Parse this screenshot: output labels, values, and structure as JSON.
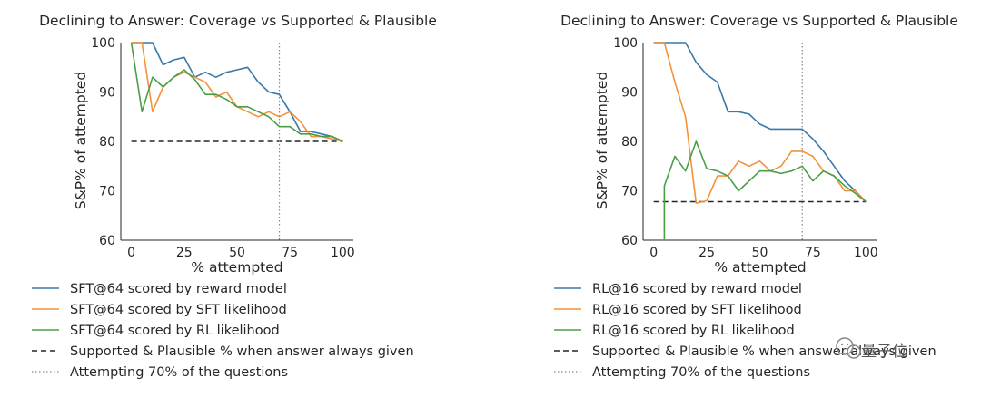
{
  "colors": {
    "reward": "#3a78a8",
    "sft": "#f4923a",
    "rl": "#4a9e47",
    "baseline": "#262626",
    "vline": "#888888"
  },
  "chart_data": [
    {
      "type": "line",
      "title": "Declining to Answer: Coverage vs Supported & Plausible",
      "xlabel": "% attempted",
      "ylabel": "S&P% of attempted",
      "xlim": [
        -5,
        105
      ],
      "ylim": [
        60,
        100
      ],
      "xticks": [
        "0",
        "25",
        "50",
        "75",
        "100"
      ],
      "yticks": [
        "60",
        "70",
        "80",
        "90",
        "100"
      ],
      "grid": false,
      "legend_position": "below",
      "baseline": 80,
      "vline": 70,
      "series": [
        {
          "name": "SFT@64 scored by reward model",
          "key": "reward",
          "x": [
            0,
            5,
            10,
            15,
            20,
            25,
            30,
            35,
            40,
            45,
            50,
            55,
            60,
            65,
            70,
            75,
            80,
            85,
            90,
            95,
            100
          ],
          "y": [
            100,
            100,
            100,
            95.5,
            96.5,
            97,
            93,
            94,
            93,
            94,
            94.5,
            95,
            92,
            90,
            89.5,
            86,
            82,
            82,
            81.5,
            81,
            80
          ]
        },
        {
          "name": "SFT@64 scored by SFT likelihood",
          "key": "sft",
          "x": [
            0,
            5,
            10,
            15,
            20,
            25,
            30,
            35,
            40,
            45,
            50,
            55,
            60,
            65,
            70,
            75,
            80,
            85,
            90,
            95,
            100
          ],
          "y": [
            100,
            100,
            86,
            91,
            93,
            94,
            93,
            92,
            89,
            90,
            87,
            86,
            85,
            86,
            85,
            86,
            84,
            81,
            81,
            80.5,
            80
          ]
        },
        {
          "name": "SFT@64 scored by RL likelihood",
          "key": "rl",
          "x": [
            0,
            5,
            10,
            15,
            20,
            25,
            30,
            35,
            40,
            45,
            50,
            55,
            60,
            65,
            70,
            75,
            80,
            85,
            90,
            95,
            100
          ],
          "y": [
            100,
            86,
            93,
            91,
            93,
            94.5,
            92.5,
            89.5,
            89.5,
            88.5,
            87,
            87,
            86,
            85,
            83,
            83,
            81.5,
            81.5,
            81,
            81,
            80
          ]
        }
      ],
      "legend": [
        {
          "label": "SFT@64 scored by reward model",
          "style": "reward"
        },
        {
          "label": "SFT@64 scored by SFT likelihood",
          "style": "sft"
        },
        {
          "label": "SFT@64 scored by RL likelihood",
          "style": "rl"
        },
        {
          "label": "Supported & Plausible % when answer always given",
          "style": "baseline"
        },
        {
          "label": "Attempting 70% of the questions",
          "style": "vline"
        }
      ]
    },
    {
      "type": "line",
      "title": "Declining to Answer: Coverage vs Supported & Plausible",
      "xlabel": "% attempted",
      "ylabel": "S&P% of attempted",
      "xlim": [
        -5,
        105
      ],
      "ylim": [
        60,
        100
      ],
      "xticks": [
        "0",
        "25",
        "50",
        "75",
        "100"
      ],
      "yticks": [
        "60",
        "70",
        "80",
        "90",
        "100"
      ],
      "grid": false,
      "legend_position": "below",
      "baseline": 67.8,
      "vline": 70,
      "series": [
        {
          "name": "RL@16 scored by reward model",
          "key": "reward",
          "x": [
            0,
            5,
            10,
            15,
            20,
            25,
            30,
            35,
            40,
            45,
            50,
            55,
            60,
            65,
            70,
            75,
            80,
            85,
            90,
            95,
            100
          ],
          "y": [
            100,
            100,
            100,
            100,
            96,
            93.5,
            92,
            86,
            86,
            85.5,
            83.5,
            82.5,
            82.5,
            82.5,
            82.5,
            80.5,
            78,
            75,
            72,
            70,
            67.8
          ]
        },
        {
          "name": "RL@16 scored by SFT likelihood",
          "key": "sft",
          "x": [
            0,
            5,
            10,
            15,
            20,
            25,
            30,
            35,
            40,
            45,
            50,
            55,
            60,
            65,
            70,
            75,
            80,
            85,
            90,
            95,
            100
          ],
          "y": [
            100,
            100,
            92,
            85,
            67.5,
            68,
            73,
            73,
            76,
            75,
            76,
            74,
            75,
            78,
            78,
            77,
            74,
            73,
            70,
            70,
            67.8
          ]
        },
        {
          "name": "RL@16 scored by RL likelihood",
          "key": "rl",
          "x": [
            5,
            5,
            10,
            15,
            20,
            25,
            30,
            35,
            40,
            45,
            50,
            55,
            60,
            65,
            70,
            75,
            80,
            85,
            90,
            95,
            100
          ],
          "y": [
            60,
            71,
            77,
            74,
            80,
            74.5,
            74,
            73,
            70,
            72,
            74,
            74,
            73.5,
            74,
            75,
            72,
            74,
            73,
            71,
            69.5,
            67.8
          ]
        }
      ],
      "legend": [
        {
          "label": "RL@16 scored by reward model",
          "style": "reward"
        },
        {
          "label": "RL@16 scored by SFT likelihood",
          "style": "sft"
        },
        {
          "label": "RL@16 scored by RL likelihood",
          "style": "rl"
        },
        {
          "label": "Supported & Plausible % when answer always given",
          "style": "baseline"
        },
        {
          "label": "Attempting 70% of the questions",
          "style": "vline"
        }
      ]
    }
  ],
  "watermark": "量子位"
}
